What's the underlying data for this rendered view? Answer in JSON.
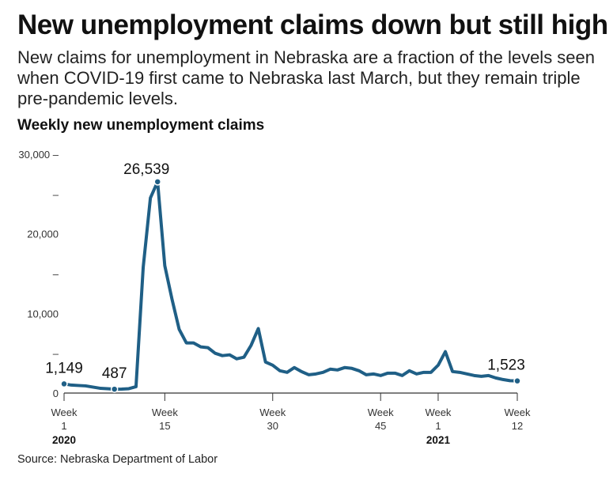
{
  "title": "New unemployment claims down but still high",
  "subtitle": "New claims for unemployment in Nebraska are a fraction of the levels seen when COVID-19 first came to Nebraska last March, but they remain triple pre-pandemic levels.",
  "chart_label": "Weekly new unemployment claims",
  "source": "Source: Nebraska Department of Labor",
  "colors": {
    "line": "#1f5f86",
    "axis": "#333333"
  },
  "chart_data": {
    "type": "line",
    "title": "Weekly new unemployment claims",
    "ylim": [
      0,
      30000
    ],
    "y_ticks": [
      {
        "value": 0,
        "label": "0"
      },
      {
        "value": 5000,
        "label": "–"
      },
      {
        "value": 10000,
        "label": "10,000"
      },
      {
        "value": 15000,
        "label": "–"
      },
      {
        "value": 20000,
        "label": "20,000"
      },
      {
        "value": 25000,
        "label": "–"
      },
      {
        "value": 30000,
        "label": "30,000 –"
      }
    ],
    "x_ticks": [
      {
        "index": 0,
        "line1": "Week",
        "line2": "1"
      },
      {
        "index": 14,
        "line1": "Week",
        "line2": "15"
      },
      {
        "index": 29,
        "line1": "Week",
        "line2": "30"
      },
      {
        "index": 44,
        "line1": "Week",
        "line2": "45"
      },
      {
        "index": 52,
        "line1": "Week",
        "line2": "1"
      },
      {
        "index": 63,
        "line1": "Week",
        "line2": "12"
      }
    ],
    "year_labels": [
      {
        "index": 0,
        "label": "2020"
      },
      {
        "index": 52,
        "label": "2021"
      }
    ],
    "annotations": [
      {
        "index": 0,
        "label": "1,149"
      },
      {
        "index": 7,
        "label": "487"
      },
      {
        "index": 13,
        "label": "26,539"
      },
      {
        "index": 63,
        "label": "1,523"
      }
    ],
    "series": [
      {
        "values": [
          1149,
          1000,
          950,
          900,
          750,
          600,
          550,
          487,
          500,
          550,
          800,
          15800,
          24500,
          26539,
          16000,
          11800,
          8000,
          6300,
          6300,
          5800,
          5700,
          5000,
          4700,
          4800,
          4300,
          4500,
          6000,
          8100,
          3900,
          3500,
          2800,
          2600,
          3200,
          2700,
          2300,
          2400,
          2600,
          3000,
          2900,
          3200,
          3100,
          2800,
          2300,
          2400,
          2200,
          2500,
          2500,
          2200,
          2800,
          2400,
          2600,
          2600,
          3500,
          5200,
          2700,
          2600,
          2400,
          2200,
          2100,
          2200,
          1900,
          1700,
          1550,
          1523
        ]
      }
    ]
  }
}
